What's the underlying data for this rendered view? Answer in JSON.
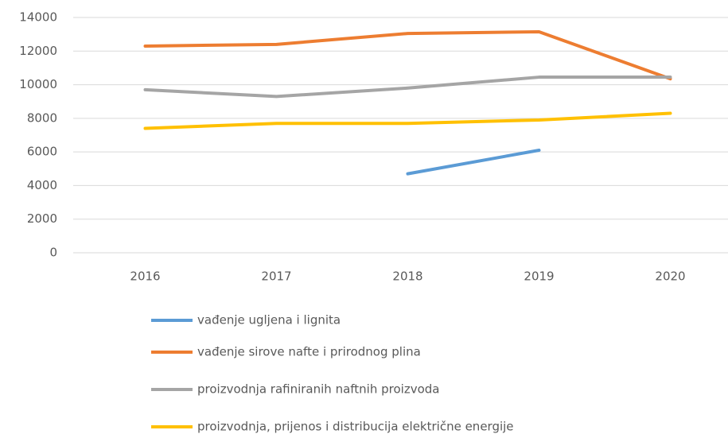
{
  "chart_data": {
    "type": "line",
    "categories": [
      "2016",
      "2017",
      "2018",
      "2019",
      "2020"
    ],
    "series": [
      {
        "name": "vađenje ugljena i lignita",
        "color": "#5b9bd5",
        "values": [
          null,
          null,
          4700,
          6100,
          null
        ]
      },
      {
        "name": "vađenje sirove nafte i prirodnog plina",
        "color": "#ed7d31",
        "values": [
          12300,
          12400,
          13050,
          13150,
          10350
        ]
      },
      {
        "name": "proizvodnja rafiniranih naftnih proizvoda",
        "color": "#a5a5a5",
        "values": [
          9700,
          9300,
          9800,
          10450,
          10450
        ]
      },
      {
        "name": "proizvodnja, prijenos i distribucija električne energije",
        "color": "#ffc000",
        "values": [
          7400,
          7700,
          7700,
          7900,
          8300
        ]
      }
    ],
    "ylim": [
      0,
      14000
    ],
    "yticks": [
      0,
      2000,
      4000,
      6000,
      8000,
      10000,
      12000,
      14000
    ],
    "grid": true,
    "legend": "bottom"
  }
}
